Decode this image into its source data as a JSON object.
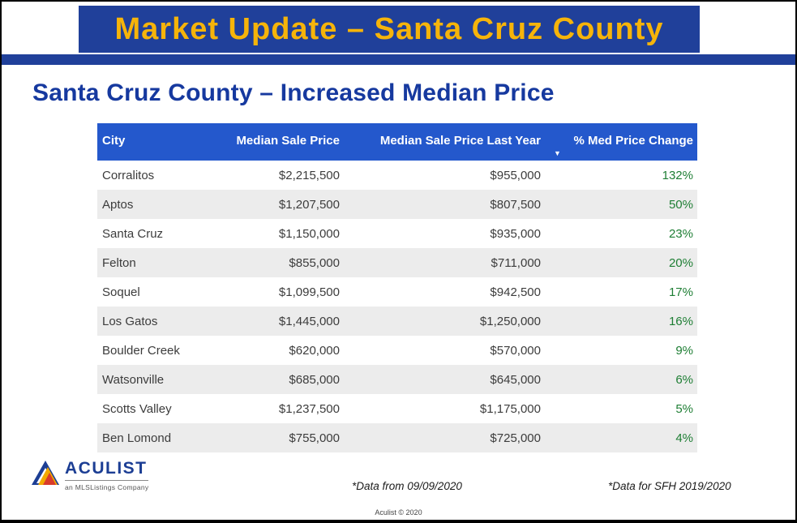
{
  "banner": {
    "title": "Market Update – Santa Cruz County"
  },
  "chart_data": {
    "type": "table",
    "title": "Santa Cruz County – Increased Median Price",
    "columns": [
      "City",
      "Median Sale Price",
      "Median Sale Price Last Year",
      "% Med Price Change"
    ],
    "sorted_column": "% Med Price Change",
    "sort_direction": "descending",
    "rows": [
      [
        "Corralitos",
        "$2,215,500",
        "$955,000",
        "132%"
      ],
      [
        "Aptos",
        "$1,207,500",
        "$807,500",
        "50%"
      ],
      [
        "Santa Cruz",
        "$1,150,000",
        "$935,000",
        "23%"
      ],
      [
        "Felton",
        "$855,000",
        "$711,000",
        "20%"
      ],
      [
        "Soquel",
        "$1,099,500",
        "$942,500",
        "17%"
      ],
      [
        "Los Gatos",
        "$1,445,000",
        "$1,250,000",
        "16%"
      ],
      [
        "Boulder Creek",
        "$620,000",
        "$570,000",
        "9%"
      ],
      [
        "Watsonville",
        "$685,000",
        "$645,000",
        "6%"
      ],
      [
        "Scotts Valley",
        "$1,237,500",
        "$1,175,000",
        "5%"
      ],
      [
        "Ben Lomond",
        "$755,000",
        "$725,000",
        "4%"
      ]
    ]
  },
  "footer": {
    "logo_text": "ACULIST",
    "logo_tagline": "an MLSListings Company",
    "note_center": "*Data from 09/09/2020",
    "note_right": "*Data for SFH 2019/2020",
    "copyright": "Aculist © 2020"
  },
  "icons": {
    "sort_descending": "▼"
  },
  "colors": {
    "banner_blue": "#20409A",
    "table_header_blue": "#2458CC",
    "title_blue": "#16399F",
    "banner_gold": "#F6B40A",
    "change_green": "#1E7E34",
    "row_alt_gray": "#ECECEC"
  }
}
